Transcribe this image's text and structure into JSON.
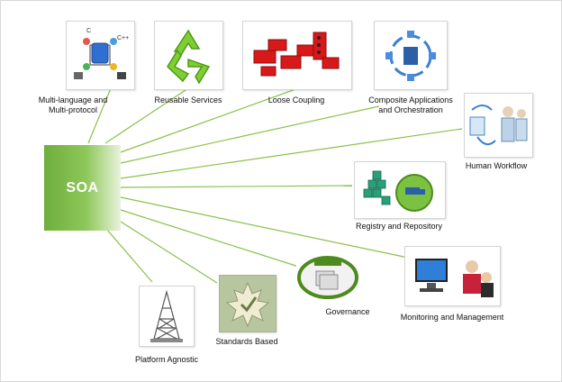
{
  "hub": {
    "label": "SOA"
  },
  "line_color": "#8cc04a",
  "nodes": [
    {
      "id": "multi-language",
      "label_lines": [
        "Multi-language and",
        "Multi-protocol"
      ],
      "icon": "network-languages-icon",
      "tags": [
        "C",
        "C++"
      ]
    },
    {
      "id": "reusable",
      "label_lines": [
        "Reusable Services"
      ],
      "icon": "recycle-icon"
    },
    {
      "id": "loose-coupling",
      "label_lines": [
        "Loose Coupling"
      ],
      "icon": "building-blocks-icon"
    },
    {
      "id": "composite",
      "label_lines": [
        "Composite Applications",
        "and Orchestration"
      ],
      "icon": "orchestration-cycle-icon"
    },
    {
      "id": "human-workflow",
      "label_lines": [
        "Human Workflow"
      ],
      "icon": "people-workflow-icon"
    },
    {
      "id": "registry",
      "label_lines": [
        "Registry and Repository"
      ],
      "icon": "registry-repository-icon"
    },
    {
      "id": "monitoring",
      "label_lines": [
        "Monitoring and Management"
      ],
      "icon": "monitor-management-icon"
    },
    {
      "id": "governance",
      "label_lines": [
        "Governance"
      ],
      "icon": "governance-seal-icon"
    },
    {
      "id": "standards",
      "label_lines": [
        "Standards Based"
      ],
      "icon": "leaf-check-icon"
    },
    {
      "id": "platform",
      "label_lines": [
        "Platform Agnostic"
      ],
      "icon": "tower-icon"
    }
  ]
}
